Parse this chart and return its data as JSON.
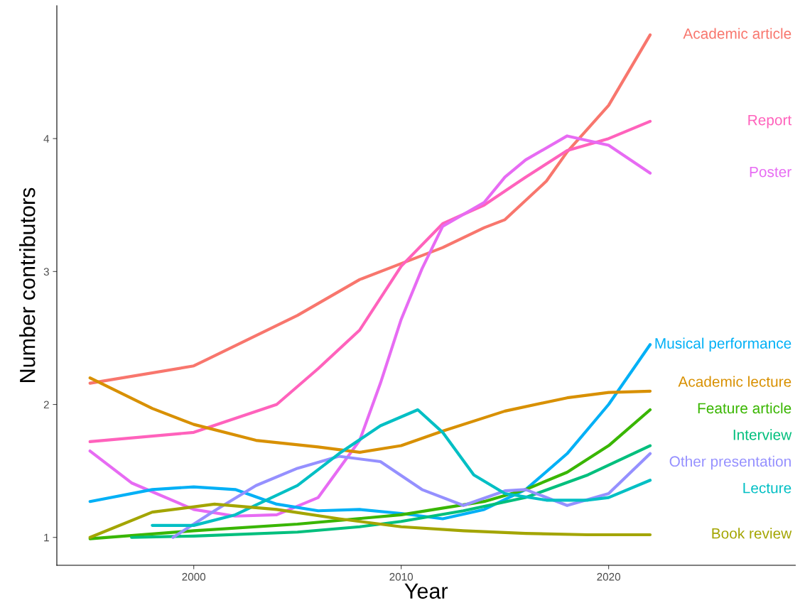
{
  "chart_data": {
    "type": "line",
    "xlabel": "Year",
    "ylabel": "Number contributors",
    "xlim": [
      1993.4,
      2029.0
    ],
    "xticks": [
      2000,
      2010,
      2020
    ],
    "ylim": [
      0.79,
      5.0
    ],
    "yticks": [
      1,
      2,
      3,
      4
    ],
    "grid": false,
    "legend": false,
    "marker": "none",
    "line_style": "solid",
    "series": [
      {
        "name": "Academic article",
        "color": "#f8766d",
        "x": [
          1995,
          2000,
          2005,
          2008,
          2010,
          2012,
          2014,
          2015,
          2017,
          2018,
          2020,
          2022
        ],
        "values": [
          2.16,
          2.29,
          2.67,
          2.94,
          3.06,
          3.18,
          3.33,
          3.39,
          3.68,
          3.9,
          4.25,
          4.78
        ]
      },
      {
        "name": "Report",
        "color": "#ff62bc",
        "x": [
          1995,
          2000,
          2004,
          2006,
          2008,
          2010,
          2012,
          2014,
          2016,
          2018,
          2020,
          2022
        ],
        "values": [
          1.72,
          1.79,
          2.0,
          2.27,
          2.56,
          3.04,
          3.36,
          3.5,
          3.71,
          3.91,
          4.0,
          4.13
        ]
      },
      {
        "name": "Poster",
        "color": "#e76bf3",
        "x": [
          1995,
          1997,
          2000,
          2002,
          2004,
          2006,
          2008,
          2009,
          2010,
          2011,
          2012,
          2014,
          2015,
          2016,
          2018,
          2020,
          2022
        ],
        "values": [
          1.65,
          1.41,
          1.21,
          1.16,
          1.17,
          1.3,
          1.73,
          2.16,
          2.64,
          3.02,
          3.34,
          3.52,
          3.71,
          3.84,
          4.02,
          3.95,
          3.74
        ]
      },
      {
        "name": "Musical performance",
        "color": "#00b0f6",
        "x": [
          1995,
          1998,
          2000,
          2002,
          2004,
          2006,
          2008,
          2010,
          2012,
          2014,
          2016,
          2018,
          2020,
          2022
        ],
        "values": [
          1.27,
          1.36,
          1.38,
          1.36,
          1.25,
          1.2,
          1.21,
          1.18,
          1.14,
          1.21,
          1.36,
          1.63,
          2.0,
          2.45
        ]
      },
      {
        "name": "Academic lecture",
        "color": "#d89000",
        "x": [
          1995,
          1998,
          2000,
          2003,
          2006,
          2008,
          2010,
          2012,
          2015,
          2018,
          2020,
          2022
        ],
        "values": [
          2.2,
          1.97,
          1.85,
          1.73,
          1.68,
          1.64,
          1.69,
          1.8,
          1.95,
          2.05,
          2.09,
          2.1
        ]
      },
      {
        "name": "Feature article",
        "color": "#39b600",
        "x": [
          1995,
          2000,
          2005,
          2010,
          2014,
          2016,
          2018,
          2020,
          2022
        ],
        "values": [
          0.99,
          1.05,
          1.1,
          1.17,
          1.27,
          1.36,
          1.49,
          1.69,
          1.96
        ]
      },
      {
        "name": "Interview",
        "color": "#00bf7d",
        "x": [
          1997,
          2000,
          2005,
          2008,
          2010,
          2013,
          2016,
          2019,
          2022
        ],
        "values": [
          1.0,
          1.01,
          1.04,
          1.08,
          1.12,
          1.2,
          1.3,
          1.47,
          1.69
        ]
      },
      {
        "name": "Other presentation",
        "color": "#9590ff",
        "x": [
          1999,
          2001,
          2003,
          2005,
          2007,
          2009,
          2011,
          2013,
          2015,
          2016,
          2018,
          2020,
          2022
        ],
        "values": [
          1.0,
          1.2,
          1.39,
          1.52,
          1.61,
          1.57,
          1.36,
          1.24,
          1.35,
          1.36,
          1.24,
          1.33,
          1.63
        ]
      },
      {
        "name": "Lecture",
        "color": "#00bfc4",
        "x": [
          1998,
          2000,
          2002,
          2005,
          2007,
          2009,
          2010.8,
          2012,
          2013.5,
          2015,
          2017,
          2019,
          2020,
          2022
        ],
        "values": [
          1.09,
          1.09,
          1.17,
          1.39,
          1.63,
          1.84,
          1.96,
          1.79,
          1.47,
          1.33,
          1.28,
          1.28,
          1.3,
          1.43
        ]
      },
      {
        "name": "Book review",
        "color": "#a3a500",
        "x": [
          1995,
          1998,
          2001,
          2004,
          2007,
          2010,
          2013,
          2016,
          2019,
          2022
        ],
        "values": [
          1.0,
          1.19,
          1.25,
          1.21,
          1.14,
          1.08,
          1.05,
          1.03,
          1.02,
          1.02
        ]
      }
    ]
  }
}
